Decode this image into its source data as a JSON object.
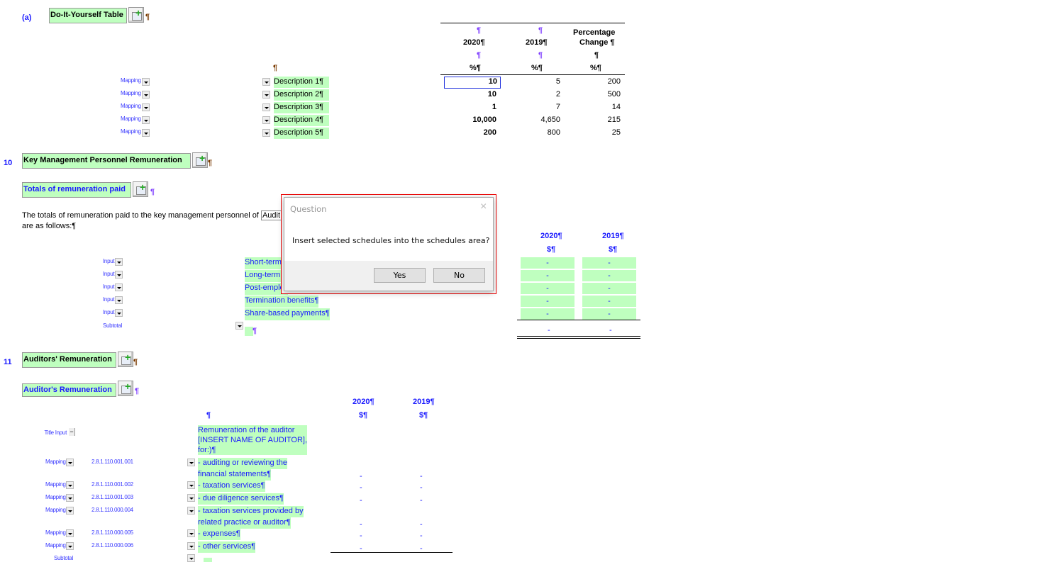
{
  "section_a": {
    "label": "(a)",
    "title": "Do-It-Yourself Table",
    "pilcrow": "¶",
    "headers": {
      "c2020": "2020¶",
      "c2019": "2019¶",
      "pct": "Percentage",
      "pct2": "Change ¶",
      "unit": "%¶",
      "mark": "¶"
    },
    "rows": [
      {
        "mapping": "Mapping",
        "desc": "Description 1¶",
        "v2020": "10",
        "v2019": "5",
        "pct": "200"
      },
      {
        "mapping": "Mapping",
        "desc": "Description 2¶",
        "v2020": "10",
        "v2019": "2",
        "pct": "500"
      },
      {
        "mapping": "Mapping",
        "desc": "Description 3¶",
        "v2020": "1",
        "v2019": "7",
        "pct": "14"
      },
      {
        "mapping": "Mapping",
        "desc": "Description 4¶",
        "v2020": "10,000",
        "v2019": "4,650",
        "pct": "215"
      },
      {
        "mapping": "Mapping",
        "desc": "Description 5¶",
        "v2020": "200",
        "v2019": "800",
        "pct": "25"
      }
    ]
  },
  "section_10": {
    "number": "10",
    "title": "Key Management Personnel Remuneration",
    "subtitle": "Totals of remuneration paid",
    "para1": "The totals of remuneration paid to the key management personnel of ",
    "entity": "Audit an",
    "para2": "are as follows:¶",
    "headers": {
      "c2020": "2020¶",
      "c2019": "2019¶",
      "unit": "$¶"
    },
    "rows": [
      {
        "type": "Input",
        "label": "Short-term",
        "v2020": "-",
        "v2019": "-"
      },
      {
        "type": "Input",
        "label": "Long-term b",
        "v2020": "-",
        "v2019": "-"
      },
      {
        "type": "Input",
        "label": "Post-employ",
        "v2020": "-",
        "v2019": "-"
      },
      {
        "type": "Input",
        "label": "Termination benefits¶",
        "v2020": "-",
        "v2019": "-"
      },
      {
        "type": "Input",
        "label": "Share-based payments¶",
        "v2020": "-",
        "v2019": "-"
      }
    ],
    "subtotal": {
      "label": "Subtotal",
      "v2020": "-",
      "v2019": "-"
    }
  },
  "section_11": {
    "number": "11",
    "title": "Auditors' Remuneration",
    "subtitle": "Auditor's Remuneration",
    "headers": {
      "c2020": "2020¶",
      "c2019": "2019¶",
      "unit": "$¶",
      "mark": "¶"
    },
    "title_input": "Title Input",
    "intro": [
      "Remuneration of the auditor",
      "[INSERT NAME OF AUDITOR],",
      "for:)¶"
    ],
    "rows": [
      {
        "mapping": "Mapping",
        "code": "2.8.1.110.001.001",
        "lines": [
          "- auditing or reviewing the",
          "financial statements¶"
        ],
        "v2020": "-",
        "v2019": "-"
      },
      {
        "mapping": "Mapping",
        "code": "2.8.1.110.001.002",
        "lines": [
          "- taxation services¶"
        ],
        "v2020": "-",
        "v2019": "-"
      },
      {
        "mapping": "Mapping",
        "code": "2.8.1.110.001.003",
        "lines": [
          "- due diligence services¶"
        ],
        "v2020": "-",
        "v2019": "-"
      },
      {
        "mapping": "Mapping",
        "code": "2.8.1.110.000.004",
        "lines": [
          "- taxation services provided by",
          "related practice or auditor¶"
        ],
        "v2020": "-",
        "v2019": "-"
      },
      {
        "mapping": "Mapping",
        "code": "2.8.1.110.000.005",
        "lines": [
          "- expenses¶"
        ],
        "v2020": "-",
        "v2019": "-"
      },
      {
        "mapping": "Mapping",
        "code": "2.8.1.110.000.006",
        "lines": [
          "- other services¶"
        ],
        "v2020": "-",
        "v2019": "-"
      }
    ],
    "subtotal": "Subtotal"
  },
  "dialog": {
    "title": "Question",
    "message": "Insert selected schedules into the schedules area?",
    "yes": "Yes",
    "no": "No",
    "close": "×"
  }
}
